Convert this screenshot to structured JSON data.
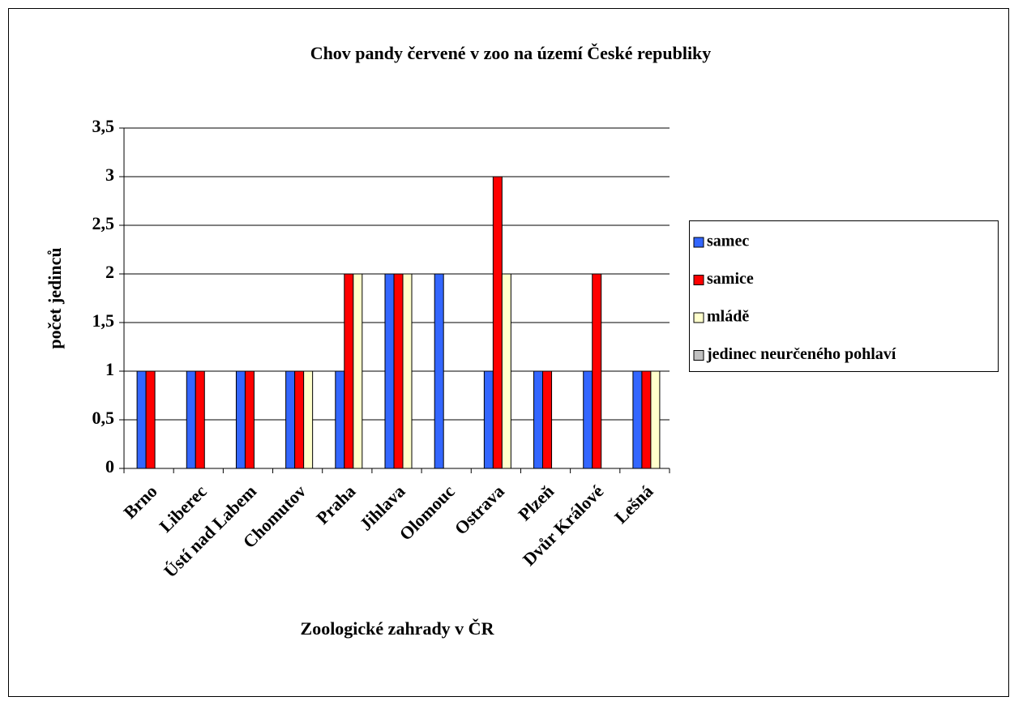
{
  "chart_data": {
    "type": "bar",
    "title": "Chov pandy červené v zoo na území České republiky",
    "x_label": "Zoologické zahrady v ČR",
    "y_label": "počet jedinců",
    "categories": [
      "Brno",
      "Liberec",
      "Ústí nad Labem",
      "Chomutov",
      "Praha",
      "Jihlava",
      "Olomouc",
      "Ostrava",
      "Plzeň",
      "Dvůr Králové",
      "Lešná"
    ],
    "series": [
      {
        "name": "samec",
        "color": "#3366ff",
        "values": [
          1,
          1,
          1,
          1,
          1,
          2,
          2,
          1,
          1,
          1,
          1
        ]
      },
      {
        "name": "samice",
        "color": "#ff0000",
        "values": [
          1,
          1,
          1,
          1,
          2,
          2,
          0,
          3,
          1,
          2,
          1
        ]
      },
      {
        "name": "mládě",
        "color": "#ffffcc",
        "values": [
          0,
          0,
          0,
          1,
          2,
          2,
          0,
          2,
          0,
          0,
          1
        ]
      },
      {
        "name": "jedinec neurčeného pohlaví",
        "color": "#c0c0c0",
        "values": [
          0,
          0,
          0,
          0,
          0,
          0,
          0,
          0,
          0,
          0,
          0
        ]
      }
    ],
    "ylim": [
      0,
      3.5
    ],
    "yticks": [
      0,
      {
        "value": 0.5,
        "label": "0,5"
      },
      1,
      {
        "value": 1.5,
        "label": "1,5"
      },
      2,
      {
        "value": 2.5,
        "label": "2,5"
      },
      3,
      {
        "value": 3.5,
        "label": "3,5"
      }
    ],
    "grid": true,
    "legend": "right"
  }
}
